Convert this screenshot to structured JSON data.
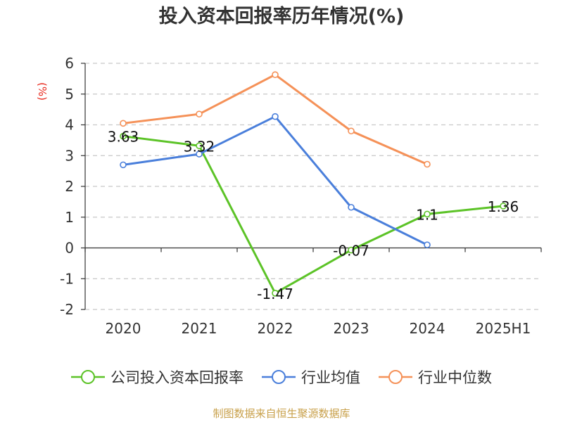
{
  "chart_data": {
    "type": "line",
    "title": "投入资本回报率历年情况(%)",
    "ylabel": "(%)",
    "categories": [
      "2020",
      "2021",
      "2022",
      "2023",
      "2024",
      "2025H1"
    ],
    "ylim": [
      -2,
      6
    ],
    "yticks": [
      -2,
      -1,
      0,
      1,
      2,
      3,
      4,
      5,
      6
    ],
    "grid": true,
    "legend_position": "bottom",
    "series": [
      {
        "name": "公司投入资本回报率",
        "color": "#5cc327",
        "values": [
          3.63,
          3.32,
          -1.47,
          -0.07,
          1.1,
          1.36
        ],
        "labels": [
          "3.63",
          "3.32",
          "-1.47",
          "-0.07",
          "1.1",
          "1.36"
        ]
      },
      {
        "name": "行业均值",
        "color": "#4a7fdb",
        "values": [
          2.7,
          3.05,
          4.27,
          1.32,
          0.1,
          null
        ]
      },
      {
        "name": "行业中位数",
        "color": "#f59158",
        "values": [
          4.05,
          4.35,
          5.63,
          3.8,
          2.72,
          null
        ]
      }
    ]
  },
  "source_note": "制图数据来自恒生聚源数据库"
}
